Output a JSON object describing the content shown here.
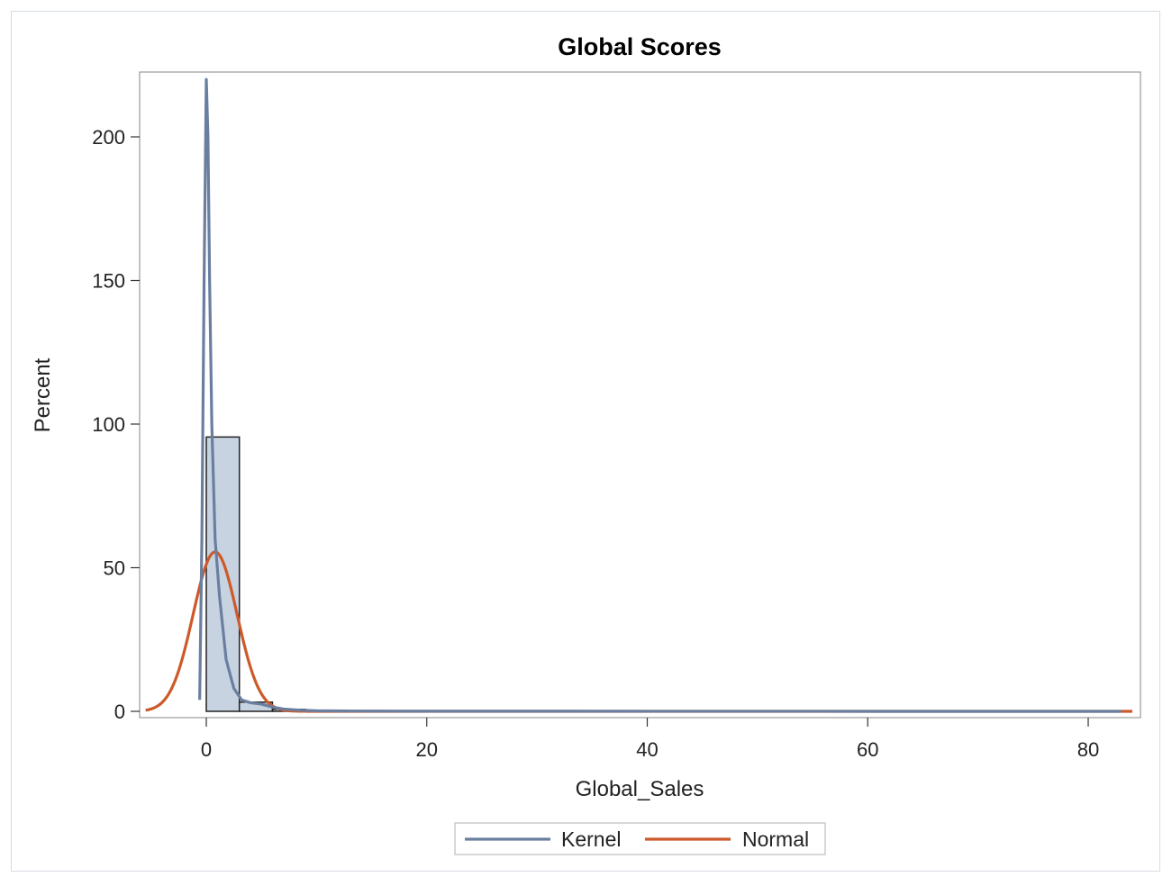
{
  "chart_data": {
    "type": "bar",
    "title": "Global Scores",
    "xlabel": "Global_Sales",
    "ylabel": "Percent",
    "xlim": [
      -6,
      84
    ],
    "ylim": [
      0,
      220
    ],
    "x_ticks": [
      0,
      20,
      40,
      60,
      80
    ],
    "y_ticks": [
      0,
      50,
      100,
      150,
      200
    ],
    "grid": false,
    "legend_position": "bottom-center",
    "histogram": {
      "name": "",
      "color": "#c8d3e2",
      "edge_color": "#222222",
      "bins": [
        {
          "x0": 0,
          "x1": 3,
          "value": 95.5
        },
        {
          "x0": 3,
          "x1": 6,
          "value": 3.2
        },
        {
          "x0": 6,
          "x1": 9,
          "value": 0.7
        },
        {
          "x0": 9,
          "x1": 12,
          "value": 0.3
        },
        {
          "x0": 12,
          "x1": 15,
          "value": 0.1
        }
      ]
    },
    "series": [
      {
        "name": "Kernel",
        "color": "#6a7fa0",
        "points": [
          [
            -0.6,
            4
          ],
          [
            -0.4,
            60
          ],
          [
            -0.2,
            150
          ],
          [
            0,
            220
          ],
          [
            0.15,
            200
          ],
          [
            0.3,
            150
          ],
          [
            0.5,
            100
          ],
          [
            0.8,
            60
          ],
          [
            1.2,
            40
          ],
          [
            1.8,
            18
          ],
          [
            2.5,
            8
          ],
          [
            3.2,
            4
          ],
          [
            4,
            3
          ],
          [
            5,
            2.5
          ],
          [
            6,
            1.5
          ],
          [
            7,
            0.8
          ],
          [
            8.5,
            0.4
          ],
          [
            10,
            0.2
          ],
          [
            13,
            0.1
          ],
          [
            20,
            0.05
          ],
          [
            40,
            0.02
          ],
          [
            60,
            0.01
          ],
          [
            83,
            0
          ]
        ]
      },
      {
        "name": "Normal",
        "color": "#cc5a2a",
        "mean": 0.8,
        "sd": 2.0,
        "peak": 55.5,
        "x_start": -5.5,
        "x_end": 84
      }
    ]
  }
}
